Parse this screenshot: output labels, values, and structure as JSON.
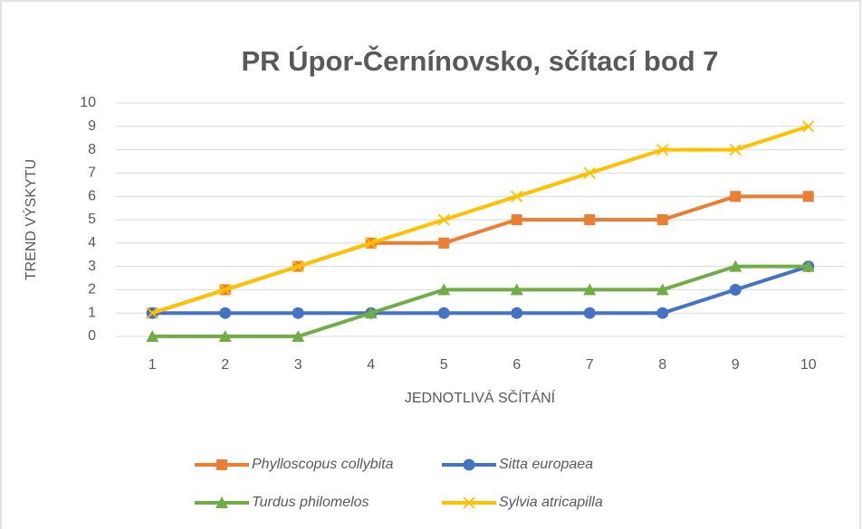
{
  "chart_data": {
    "type": "line",
    "title": "PR Úpor-Černínovsko, sčítací bod 7",
    "x_label": "JEDNOTLIVÁ SČÍTÁNÍ",
    "y_label": "TREND VÝSKYTU",
    "x": [
      1,
      2,
      3,
      4,
      5,
      6,
      7,
      8,
      9,
      10
    ],
    "xlim": [
      0.5,
      10.5
    ],
    "xticks": [
      1,
      2,
      3,
      4,
      5,
      6,
      7,
      8,
      9,
      10
    ],
    "ylim": [
      0,
      10
    ],
    "yticks": [
      0,
      1,
      2,
      3,
      4,
      5,
      6,
      7,
      8,
      9,
      10
    ],
    "grid": true,
    "legend": "bottom",
    "series": [
      {
        "name": "Phylloscopus collybita",
        "color": "#ed7d31",
        "marker": "square",
        "values": [
          1,
          2,
          3,
          4,
          4,
          5,
          5,
          5,
          6,
          6
        ]
      },
      {
        "name": "Sitta europaea",
        "color": "#4472c4",
        "marker": "circle",
        "values": [
          1,
          1,
          1,
          1,
          1,
          1,
          1,
          1,
          2,
          3
        ]
      },
      {
        "name": "Turdus philomelos",
        "color": "#70ad47",
        "marker": "triangle",
        "values": [
          0,
          0,
          0,
          1,
          2,
          2,
          2,
          2,
          3,
          3
        ]
      },
      {
        "name": "Sylvia atricapilla",
        "color": "#ffc000",
        "marker": "x",
        "values": [
          1,
          2,
          3,
          4,
          5,
          6,
          7,
          8,
          8,
          9
        ]
      }
    ]
  }
}
